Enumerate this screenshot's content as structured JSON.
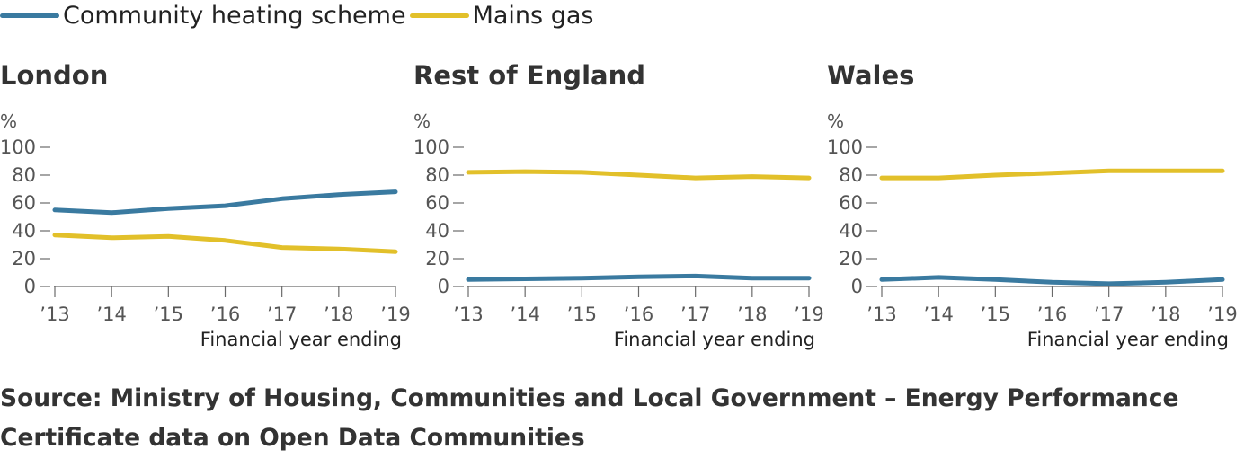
{
  "legend": {
    "community": "Community heating scheme",
    "mains": "Mains gas"
  },
  "colors": {
    "community": "#3a7aa0",
    "mains": "#e2c02a",
    "axis": "#6a6a6a",
    "tick_text": "#555555"
  },
  "chart_data": [
    {
      "type": "line",
      "title": "London",
      "ylabel": "%",
      "xlabel": "Financial year ending",
      "categories": [
        "’13",
        "’14",
        "’15",
        "’16",
        "’17",
        "’18",
        "’19"
      ],
      "ylim": [
        0,
        100
      ],
      "yticks": [
        0,
        20,
        40,
        60,
        80,
        100
      ],
      "grid": false,
      "series": [
        {
          "name": "Community heating scheme",
          "values": [
            55,
            53,
            56,
            58,
            63,
            66,
            68
          ]
        },
        {
          "name": "Mains gas",
          "values": [
            37,
            35,
            36,
            33,
            28,
            27,
            25
          ]
        }
      ]
    },
    {
      "type": "line",
      "title": "Rest of England",
      "ylabel": "%",
      "xlabel": "Financial year ending",
      "categories": [
        "’13",
        "’14",
        "’15",
        "’16",
        "’17",
        "’18",
        "’19"
      ],
      "ylim": [
        0,
        100
      ],
      "yticks": [
        0,
        20,
        40,
        60,
        80,
        100
      ],
      "grid": false,
      "series": [
        {
          "name": "Community heating scheme",
          "values": [
            5,
            5.5,
            6,
            7,
            7.5,
            6,
            6
          ]
        },
        {
          "name": "Mains gas",
          "values": [
            82,
            82.5,
            82,
            80,
            78,
            79,
            78
          ]
        }
      ]
    },
    {
      "type": "line",
      "title": "Wales",
      "ylabel": "%",
      "xlabel": "Financial year ending",
      "categories": [
        "’13",
        "’14",
        "’15",
        "’16",
        "’17",
        "’18",
        "’19"
      ],
      "ylim": [
        0,
        100
      ],
      "yticks": [
        0,
        20,
        40,
        60,
        80,
        100
      ],
      "grid": false,
      "series": [
        {
          "name": "Community heating scheme",
          "values": [
            5,
            6.5,
            5,
            3,
            2,
            3,
            5
          ]
        },
        {
          "name": "Mains gas",
          "values": [
            78,
            78,
            80,
            81.5,
            83,
            83,
            83
          ]
        }
      ]
    }
  ],
  "source": {
    "line1": "Source: Ministry of Housing, Communities and Local Government – Energy Performance",
    "line2": "Certificate data on Open Data Communities"
  }
}
